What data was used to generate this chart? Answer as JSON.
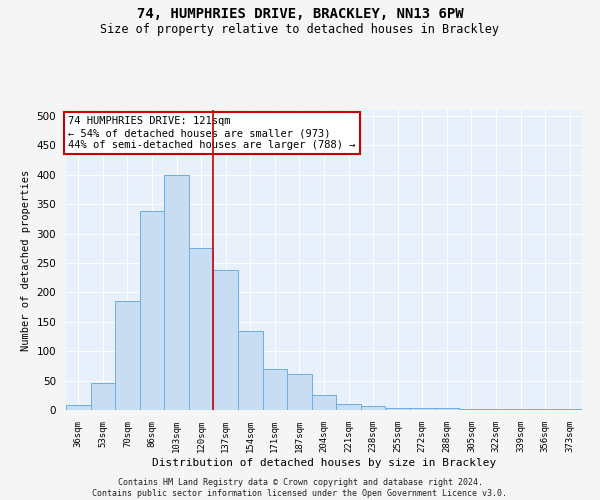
{
  "title1": "74, HUMPHRIES DRIVE, BRACKLEY, NN13 6PW",
  "title2": "Size of property relative to detached houses in Brackley",
  "xlabel": "Distribution of detached houses by size in Brackley",
  "ylabel": "Number of detached properties",
  "categories": [
    "36sqm",
    "53sqm",
    "70sqm",
    "86sqm",
    "103sqm",
    "120sqm",
    "137sqm",
    "154sqm",
    "171sqm",
    "187sqm",
    "204sqm",
    "221sqm",
    "238sqm",
    "255sqm",
    "272sqm",
    "288sqm",
    "305sqm",
    "322sqm",
    "339sqm",
    "356sqm",
    "373sqm"
  ],
  "values": [
    8,
    46,
    185,
    338,
    400,
    276,
    238,
    135,
    70,
    62,
    25,
    10,
    6,
    4,
    3,
    3,
    2,
    2,
    1,
    1,
    2
  ],
  "bar_color": "#c9ddf2",
  "bar_edge_color": "#6aaee8",
  "vline_color": "#cc0000",
  "annotation_text": "74 HUMPHRIES DRIVE: 121sqm\n← 54% of detached houses are smaller (973)\n44% of semi-detached houses are larger (788) →",
  "annotation_box_color": "#ffffff",
  "annotation_box_edge_color": "#cc0000",
  "footnote": "Contains HM Land Registry data © Crown copyright and database right 2024.\nContains public sector information licensed under the Open Government Licence v3.0.",
  "ylim": [
    0,
    510
  ],
  "bg_color": "#e8f0fb",
  "grid_color": "#ffffff",
  "fig_bg_color": "#f5f5f5",
  "yticks": [
    0,
    50,
    100,
    150,
    200,
    250,
    300,
    350,
    400,
    450,
    500
  ]
}
